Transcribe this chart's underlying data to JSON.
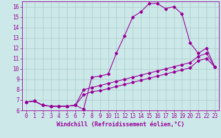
{
  "xlabel": "Windchill (Refroidissement éolien,°C)",
  "background_color": "#cce8e8",
  "line_color": "#990099",
  "grid_color": "#aacccc",
  "xlim": [
    -0.5,
    23.5
  ],
  "ylim": [
    6,
    16.5
  ],
  "xticks": [
    0,
    1,
    2,
    3,
    4,
    5,
    6,
    7,
    8,
    9,
    10,
    11,
    12,
    13,
    14,
    15,
    16,
    17,
    18,
    19,
    20,
    21,
    22,
    23
  ],
  "yticks": [
    6,
    7,
    8,
    9,
    10,
    11,
    12,
    13,
    14,
    15,
    16
  ],
  "line1_x": [
    0,
    1,
    2,
    3,
    4,
    5,
    6,
    7,
    8,
    9,
    10,
    11,
    12,
    13,
    14,
    15,
    16,
    17,
    18,
    19,
    20,
    21,
    22,
    23
  ],
  "line1_y": [
    6.8,
    6.9,
    6.5,
    6.4,
    6.4,
    6.4,
    6.5,
    6.1,
    9.2,
    9.3,
    9.5,
    11.5,
    13.2,
    15.0,
    15.5,
    16.3,
    16.3,
    15.8,
    16.0,
    15.3,
    12.5,
    11.5,
    12.0,
    10.2
  ],
  "line2_x": [
    0,
    1,
    2,
    3,
    4,
    5,
    6,
    7,
    8,
    9,
    10,
    11,
    12,
    13,
    14,
    15,
    16,
    17,
    18,
    19,
    20,
    21,
    22,
    23
  ],
  "line2_y": [
    6.8,
    6.9,
    6.5,
    6.4,
    6.4,
    6.4,
    6.5,
    8.0,
    8.2,
    8.4,
    8.6,
    8.8,
    9.0,
    9.2,
    9.4,
    9.6,
    9.8,
    10.0,
    10.2,
    10.4,
    10.6,
    11.2,
    11.5,
    10.2
  ],
  "line3_x": [
    0,
    1,
    2,
    3,
    4,
    5,
    6,
    7,
    8,
    9,
    10,
    11,
    12,
    13,
    14,
    15,
    16,
    17,
    18,
    19,
    20,
    21,
    22,
    23
  ],
  "line3_y": [
    6.8,
    6.9,
    6.5,
    6.4,
    6.4,
    6.4,
    6.5,
    7.5,
    7.8,
    7.9,
    8.1,
    8.3,
    8.5,
    8.7,
    8.9,
    9.1,
    9.3,
    9.5,
    9.7,
    9.9,
    10.1,
    10.8,
    11.0,
    10.2
  ],
  "tick_fontsize": 5.5,
  "xlabel_fontsize": 6.0
}
